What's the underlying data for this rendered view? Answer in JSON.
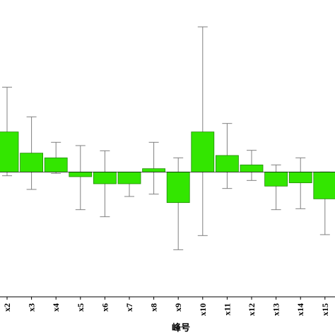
{
  "chart_data": {
    "type": "bar",
    "title": "",
    "xlabel": "峰号",
    "ylabel": "",
    "categories": [
      "x2",
      "x3",
      "x4",
      "x5",
      "x6",
      "x7",
      "x8",
      "x9",
      "x10",
      "x11",
      "x12",
      "x13",
      "x14",
      "x15"
    ],
    "values": [
      0.85,
      0.4,
      0.3,
      -0.1,
      -0.25,
      -0.25,
      0.07,
      -0.65,
      0.85,
      0.35,
      0.15,
      -0.3,
      -0.23,
      -0.57
    ],
    "error_upper": [
      1.8,
      1.17,
      0.63,
      0.56,
      0.45,
      -0.03,
      0.63,
      0.3,
      3.08,
      1.03,
      0.46,
      0.15,
      0.3,
      0.0
    ],
    "error_lower": [
      -0.08,
      -0.37,
      -0.03,
      -0.8,
      -0.95,
      -0.52,
      -0.47,
      -1.65,
      -1.35,
      -0.35,
      -0.18,
      -0.8,
      -0.78,
      -1.33
    ],
    "ylim": [
      -2.5,
      3.5
    ],
    "bar_color": "#33e600",
    "bar_edge_color": "#208a00",
    "error_color": "#808080",
    "grid": false,
    "legend": "none"
  }
}
